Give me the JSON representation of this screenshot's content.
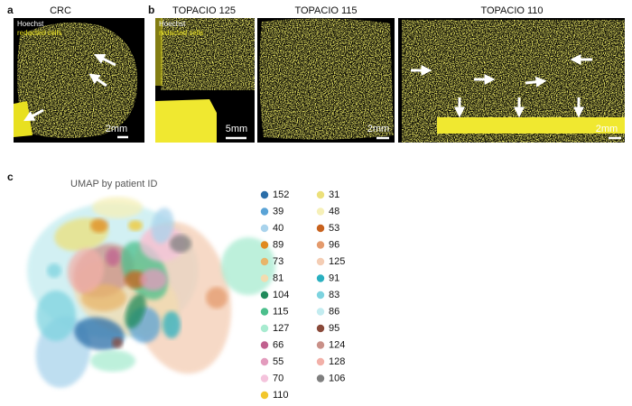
{
  "panels": [
    {
      "label": "a",
      "title": "CRC",
      "stains": [
        "Hoechst",
        "redacted cells"
      ],
      "scale": "2mm"
    },
    {
      "label": "b",
      "title": "TOPACIO 125",
      "stains": [
        "Hoechst",
        "redacted cells"
      ],
      "scale": "5mm"
    },
    {
      "title": "TOPACIO 115",
      "scale": "2mm"
    },
    {
      "title": "TOPACIO 110",
      "scale": "2mm"
    }
  ],
  "umap": {
    "label": "c",
    "title": "UMAP by patient ID",
    "patients": [
      {
        "id": "152",
        "color": "#2b6ea8"
      },
      {
        "id": "39",
        "color": "#5aa3d6"
      },
      {
        "id": "40",
        "color": "#a9d3ec"
      },
      {
        "id": "89",
        "color": "#e08a1e"
      },
      {
        "id": "73",
        "color": "#e8b56a"
      },
      {
        "id": "81",
        "color": "#f2dcb0"
      },
      {
        "id": "104",
        "color": "#1f8a5a"
      },
      {
        "id": "115",
        "color": "#4cbf8c"
      },
      {
        "id": "127",
        "color": "#a8ebd0"
      },
      {
        "id": "66",
        "color": "#c0608e"
      },
      {
        "id": "55",
        "color": "#e39bbd"
      },
      {
        "id": "70",
        "color": "#f4c3dc"
      },
      {
        "id": "110",
        "color": "#f2c62c"
      },
      {
        "id": "31",
        "color": "#ece07a"
      },
      {
        "id": "48",
        "color": "#f6f0b8"
      },
      {
        "id": "53",
        "color": "#c8621e"
      },
      {
        "id": "96",
        "color": "#e49a6c"
      },
      {
        "id": "125",
        "color": "#f4cdb4"
      },
      {
        "id": "91",
        "color": "#2ab0c0"
      },
      {
        "id": "83",
        "color": "#7dd3df"
      },
      {
        "id": "86",
        "color": "#c3ecf0"
      },
      {
        "id": "95",
        "color": "#8a4a3a"
      },
      {
        "id": "124",
        "color": "#c99088"
      },
      {
        "id": "128",
        "color": "#f2b0a8"
      },
      {
        "id": "106",
        "color": "#7f7f7f"
      }
    ]
  }
}
